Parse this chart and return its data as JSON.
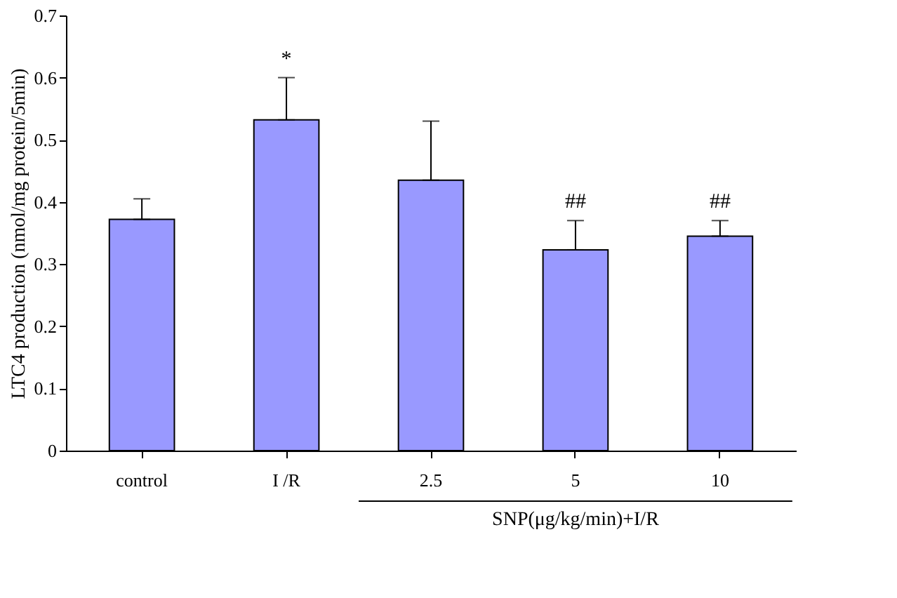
{
  "chart_data": {
    "type": "bar",
    "ylabel": "LTC4 production (nmol/mg protein/5min)",
    "categories": [
      "control",
      "I /R",
      "2.5",
      "5",
      "10"
    ],
    "values": [
      0.372,
      0.532,
      0.435,
      0.323,
      0.345
    ],
    "errors": [
      [
        0.372,
        0.405
      ],
      [
        0.532,
        0.6
      ],
      [
        0.435,
        0.53
      ],
      [
        0.323,
        0.37
      ],
      [
        0.345,
        0.37
      ]
    ],
    "color": "#9999ff",
    "ylim": [
      0,
      0.7
    ],
    "yticks": [
      0,
      0.1,
      0.2,
      0.3,
      0.4,
      0.5,
      0.6,
      0.7
    ],
    "grid": false,
    "annotations": [
      {
        "text": "*",
        "x": "I /R",
        "y": 0.6
      },
      {
        "text": "##",
        "x": "5",
        "y": 0.37
      },
      {
        "text": "##",
        "x": "10",
        "y": 0.37
      },
      "SNP(μg/kg/min)+I/R"
    ]
  }
}
